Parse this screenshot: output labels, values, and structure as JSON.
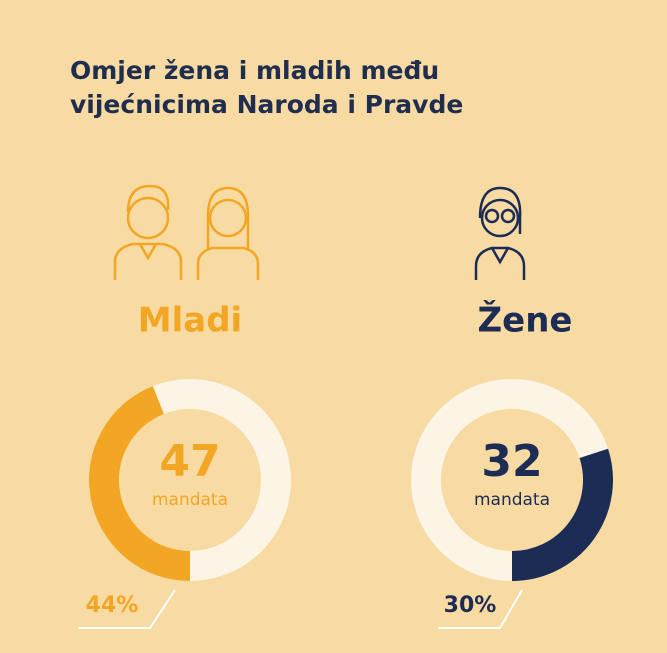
{
  "title": [
    "Omjer žena i mladih među",
    "vijećnicima Naroda i Pravde"
  ],
  "chart_data": [
    {
      "type": "donut",
      "title": "Mladi",
      "count": 47,
      "count_label": "mandata",
      "values": [
        44
      ],
      "value_labels": [
        "44%"
      ],
      "color": "#f2a623",
      "direction": "clockwise"
    },
    {
      "type": "donut",
      "title": "Žene",
      "count": 32,
      "count_label": "mandata",
      "values": [
        30
      ],
      "value_labels": [
        "30%"
      ],
      "color": "#1c2c55",
      "direction": "counterclockwise"
    }
  ]
}
